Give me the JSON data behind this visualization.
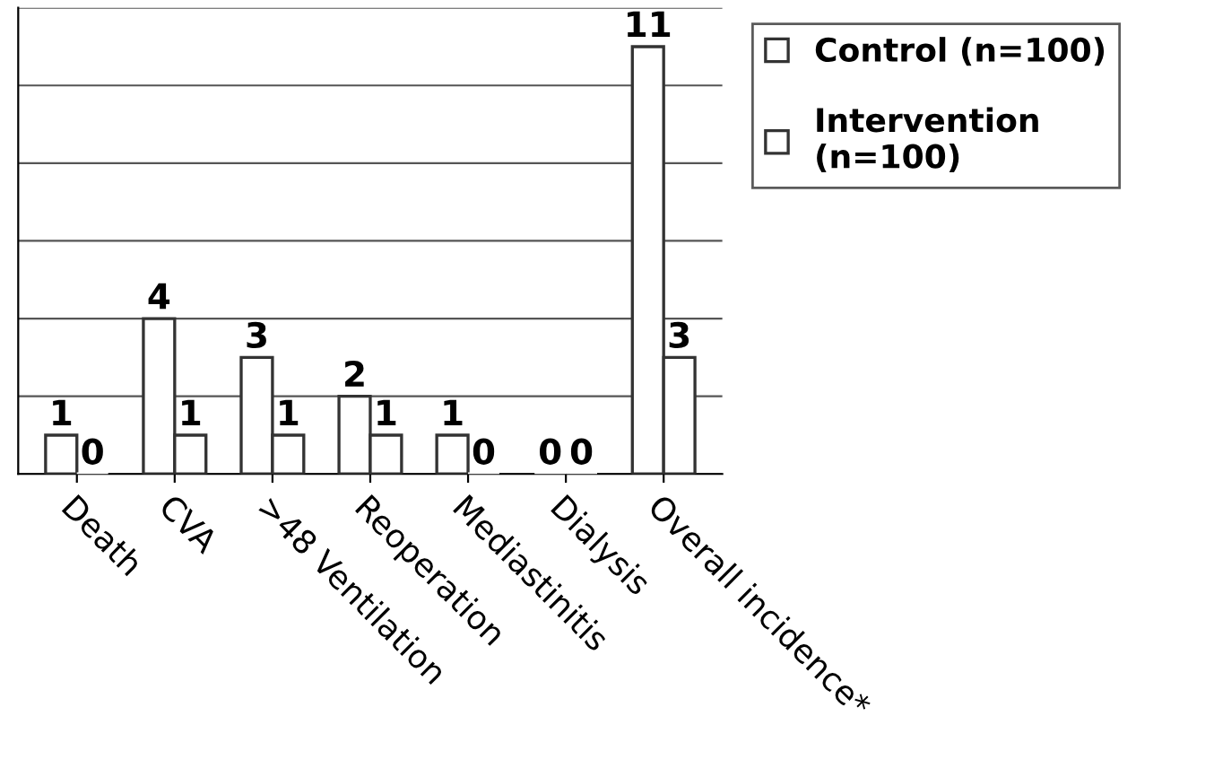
{
  "chart_data": {
    "type": "bar",
    "categories": [
      "Death",
      "CVA",
      ">48 Ventilation",
      "Reoperation",
      "Mediastinitis",
      "Dialysis",
      "Overall incidence*"
    ],
    "series": [
      {
        "name": "Control (n=100)",
        "color": "#ffffff",
        "values": [
          1,
          4,
          3,
          2,
          1,
          0,
          11
        ]
      },
      {
        "name": "Intervention (n=100)",
        "color": "#ffffff",
        "values": [
          0,
          1,
          1,
          1,
          0,
          0,
          3
        ]
      }
    ],
    "ylim": [
      0,
      12
    ],
    "yticks": [
      0,
      {
        "value": 2,
        "label": null
      },
      {
        "value": 4,
        "label": null
      },
      {
        "value": 6,
        "label": null
      },
      {
        "value": 8,
        "label": null
      },
      {
        "value": 10,
        "label": null
      },
      {
        "value": 12,
        "label": null
      }
    ],
    "tick_labels": "x",
    "grid": "y",
    "data_labels": true,
    "legend": "right"
  }
}
